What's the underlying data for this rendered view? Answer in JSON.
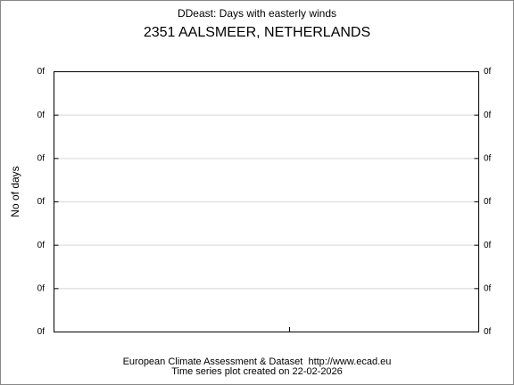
{
  "chart_data": {
    "type": "line",
    "title": "DDeast: Days with easterly winds",
    "subtitle": "2351 AALSMEER, NETHERLANDS",
    "y_label": "No of days",
    "ylim": [
      0,
      6
    ],
    "yticks": [
      {
        "value": 0,
        "label": "0f"
      },
      {
        "value": 1,
        "label": "0f"
      },
      {
        "value": 2,
        "label": "0f"
      },
      {
        "value": 3,
        "label": "0f"
      },
      {
        "value": 4,
        "label": "0f"
      },
      {
        "value": 5,
        "label": "0f"
      },
      {
        "value": 6,
        "label": "0f"
      }
    ],
    "grid": true,
    "footer": [
      "European Climate Assessment & Dataset  http://www.ecad.eu",
      "Time series plot created on 22-02-2026"
    ]
  }
}
